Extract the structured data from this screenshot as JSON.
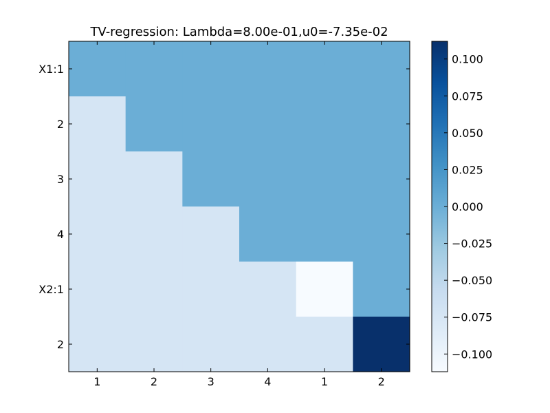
{
  "chart_data": {
    "type": "heatmap",
    "title": "TV-regression: Lambda=8.00e-01,u0=-7.35e-02",
    "xlabel": "",
    "ylabel": "",
    "x_tick_labels": [
      "1",
      "2",
      "3",
      "4",
      "1",
      "2"
    ],
    "y_tick_labels": [
      "X1:1",
      "2",
      "3",
      "4",
      "X2:1",
      "2"
    ],
    "values": [
      [
        0.0,
        0.0,
        0.0,
        0.0,
        0.0,
        0.0
      ],
      [
        -0.073,
        0.0,
        0.0,
        0.0,
        0.0,
        0.0
      ],
      [
        -0.073,
        -0.073,
        0.0,
        0.0,
        0.0,
        0.0
      ],
      [
        -0.073,
        -0.073,
        -0.073,
        0.0,
        0.0,
        0.0
      ],
      [
        -0.073,
        -0.073,
        -0.073,
        -0.073,
        -0.112,
        0.0
      ],
      [
        -0.073,
        -0.073,
        -0.073,
        -0.073,
        -0.073,
        0.112
      ]
    ],
    "colormap": "Blues",
    "colorbar": {
      "range": [
        -0.112,
        0.112
      ],
      "tick_values": [
        0.1,
        0.075,
        0.05,
        0.025,
        0.0,
        -0.025,
        -0.05,
        -0.075,
        -0.1
      ],
      "tick_labels": [
        "0.100",
        "0.075",
        "0.050",
        "0.025",
        "0.000",
        "−0.025",
        "−0.050",
        "−0.075",
        "−0.100"
      ]
    },
    "grid": false,
    "legend": "colorbar-right"
  }
}
